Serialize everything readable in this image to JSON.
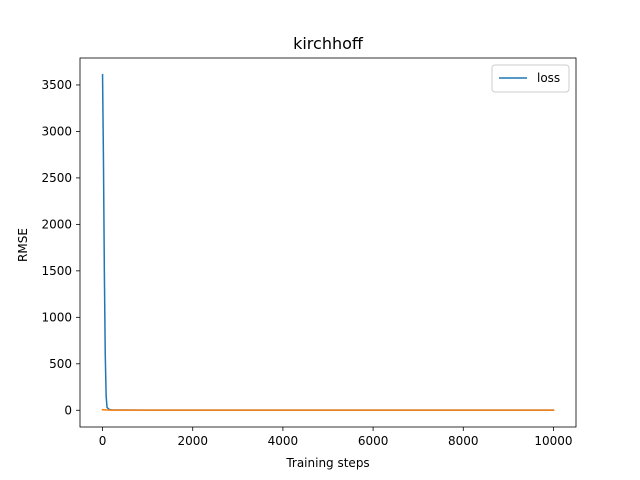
{
  "chart_data": {
    "type": "line",
    "title": "kirchhoff",
    "xlabel": "Training steps",
    "ylabel": "RMSE",
    "xlim": [
      -500,
      10500
    ],
    "ylim": [
      -180,
      3790
    ],
    "xticks": [
      0,
      2000,
      4000,
      6000,
      8000,
      10000
    ],
    "yticks": [
      0,
      500,
      1000,
      1500,
      2000,
      2500,
      3000,
      3500
    ],
    "xtick_labels": [
      "0",
      "2000",
      "4000",
      "6000",
      "8000",
      "10000"
    ],
    "ytick_labels": [
      "0",
      "500",
      "1000",
      "1500",
      "2000",
      "2500",
      "3000",
      "3500"
    ],
    "grid": false,
    "legend_position": "upper-right",
    "series": [
      {
        "name": "loss",
        "color": "#1f77b4",
        "x": [
          0,
          20,
          40,
          60,
          80,
          100,
          150,
          200,
          500,
          1000,
          2000,
          4000,
          6000,
          8000,
          10000
        ],
        "y": [
          3610,
          2700,
          1500,
          600,
          150,
          30,
          8,
          4,
          3,
          2,
          2,
          2,
          2,
          2,
          2
        ]
      },
      {
        "name": "",
        "color": "#ff7f0e",
        "x": [
          0,
          100,
          200,
          500,
          1000,
          2000,
          4000,
          6000,
          8000,
          10000
        ],
        "y": [
          5,
          3,
          2,
          2,
          2,
          2,
          2,
          2,
          2,
          2
        ]
      }
    ]
  }
}
